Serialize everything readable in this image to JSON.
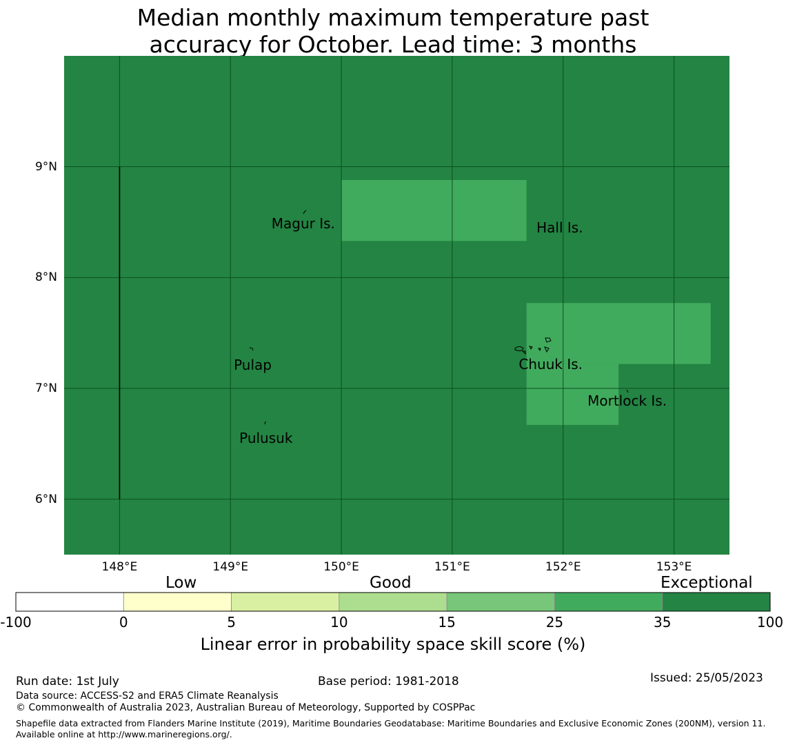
{
  "title": {
    "line1": "Median monthly maximum temperature past",
    "line2": "accuracy for October. Lead time: 3 months"
  },
  "map": {
    "lon_range": [
      147.5,
      153.5
    ],
    "lat_range": [
      5.5,
      10.0
    ],
    "base_color": "#238443",
    "lat_ticks": [
      {
        "value": 9,
        "label": "9°N"
      },
      {
        "value": 8,
        "label": "8°N"
      },
      {
        "value": 7,
        "label": "7°N"
      },
      {
        "value": 6,
        "label": "6°N"
      }
    ],
    "lon_ticks": [
      {
        "value": 148,
        "label": "148°E"
      },
      {
        "value": 149,
        "label": "149°E"
      },
      {
        "value": 150,
        "label": "150°E"
      },
      {
        "value": 151,
        "label": "151°E"
      },
      {
        "value": 152,
        "label": "152°E"
      },
      {
        "value": 153,
        "label": "153°E"
      }
    ],
    "eez_boundary": {
      "lon": 148.0,
      "lat_from": 6.0,
      "lat_to": 9.0
    },
    "skill_patches": [
      {
        "category": "25-35",
        "color": "#41ab5d",
        "lon": [
          150.0,
          151.67
        ],
        "lat": [
          8.33,
          8.88
        ]
      },
      {
        "category": "25-35",
        "color": "#41ab5d",
        "lon": [
          151.67,
          153.33
        ],
        "lat": [
          7.22,
          7.77
        ]
      },
      {
        "category": "25-35",
        "color": "#41ab5d",
        "lon": [
          151.67,
          152.5
        ],
        "lat": [
          6.67,
          7.22
        ]
      }
    ],
    "places": [
      {
        "name": "Magur Is.",
        "lon": 149.37,
        "lat": 8.49
      },
      {
        "name": "Hall Is.",
        "lon": 151.76,
        "lat": 8.45
      },
      {
        "name": "Pulap",
        "lon": 149.03,
        "lat": 7.21
      },
      {
        "name": "Chuuk Is.",
        "lon": 151.6,
        "lat": 7.22
      },
      {
        "name": "Mortlock Is.",
        "lon": 152.22,
        "lat": 6.89
      },
      {
        "name": "Pulusuk",
        "lon": 149.08,
        "lat": 6.55
      }
    ]
  },
  "legend": {
    "category_labels": [
      "Low",
      "Good",
      "Exceptional"
    ],
    "ticks": [
      "-100",
      "0",
      "5",
      "10",
      "15",
      "25",
      "35",
      "100"
    ],
    "colors": [
      "#ffffff",
      "#ffffcc",
      "#d9f0a3",
      "#addd8e",
      "#78c679",
      "#41ab5d",
      "#238443"
    ],
    "title": "Linear error in probability space skill score (%)"
  },
  "footer": {
    "run_date": "Run date: 1st July",
    "base_period": "Base period: 1981-2018",
    "issued": "Issued: 25/05/2023",
    "data_source": "Data source: ACCESS-S2 and ERA5 Climate Reanalysis",
    "copyright": "© Commonwealth of Australia 2023, Australian Bureau of Meteorology, Supported by COSPPac",
    "shapefile_note": "Shapefile data extracted from Flanders Marine Institute (2019), Maritime Boundaries Geodatabase: Maritime Boundaries and Exclusive Economic Zones (200NM), version 11. Available online at http://www.marineregions.org/."
  }
}
